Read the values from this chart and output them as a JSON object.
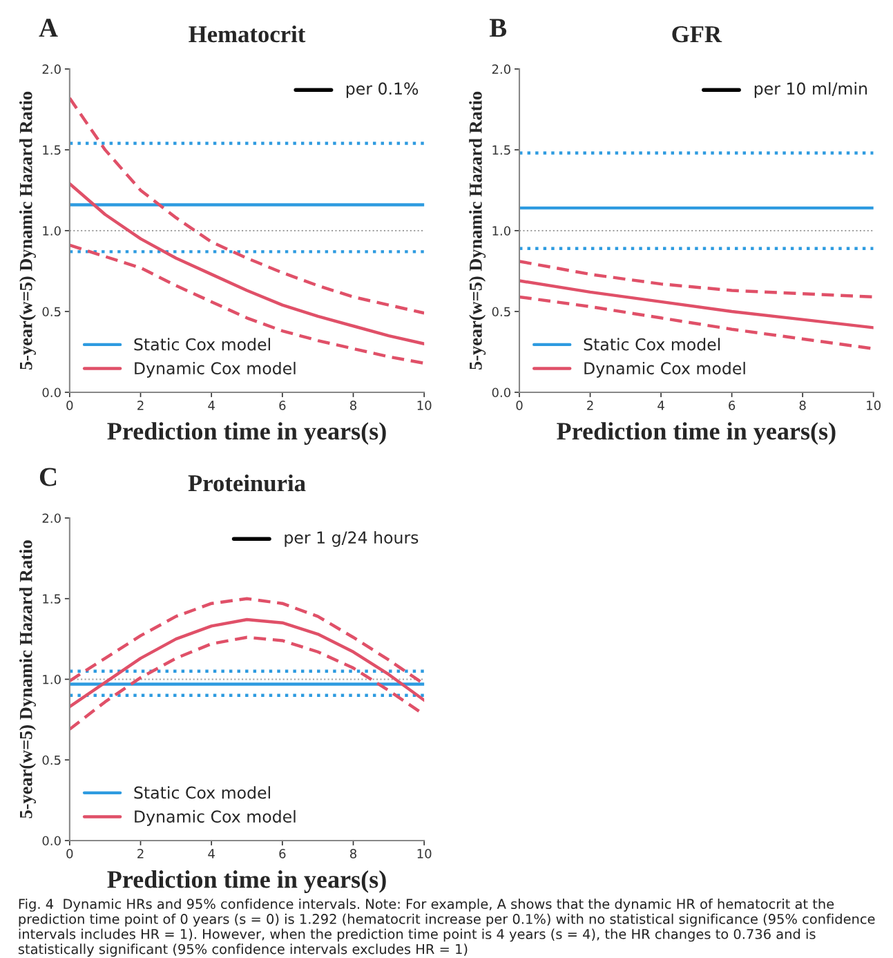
{
  "chart_data": [
    {
      "type": "line",
      "title": "Hematocrit",
      "xlabel": "Prediction time in years(s)",
      "ylabel": "5-year(w=5) Dynamic Hazard Ratio",
      "x": [
        0,
        1,
        2,
        3,
        4,
        5,
        6,
        7,
        8,
        9,
        10
      ],
      "xlim": [
        0,
        10
      ],
      "xticks": [
        0,
        2,
        4,
        6,
        8,
        10
      ],
      "ylim": [
        0,
        2
      ],
      "yticks": [
        {
          "value": 0,
          "label": "0.0"
        },
        {
          "value": 0.5,
          "label": "0.5"
        },
        {
          "value": 1,
          "label": "1.0"
        },
        {
          "value": 1.5,
          "label": "1.5"
        },
        {
          "value": 2,
          "label": "2.0"
        }
      ],
      "legend": "lower left",
      "grid": false,
      "series": [
        {
          "name": "Static Cox model",
          "color": "#2e9be0",
          "line_style": "solid",
          "values": [
            1.16,
            1.16,
            1.16,
            1.16,
            1.16,
            1.16,
            1.16,
            1.16,
            1.16,
            1.16,
            1.16
          ]
        },
        {
          "color": "#2e9be0",
          "line_style": "dotted",
          "values": [
            1.54,
            1.54,
            1.54,
            1.54,
            1.54,
            1.54,
            1.54,
            1.54,
            1.54,
            1.54,
            1.54
          ]
        },
        {
          "color": "#2e9be0",
          "line_style": "dotted",
          "values": [
            0.87,
            0.87,
            0.87,
            0.87,
            0.87,
            0.87,
            0.87,
            0.87,
            0.87,
            0.87,
            0.87
          ]
        },
        {
          "name": "Dynamic Cox model",
          "color": "#e05068",
          "line_style": "solid",
          "values": [
            1.29,
            1.1,
            0.95,
            0.83,
            0.73,
            0.63,
            0.54,
            0.47,
            0.41,
            0.35,
            0.3
          ]
        },
        {
          "color": "#e05068",
          "line_style": "dashed",
          "values": [
            1.82,
            1.5,
            1.25,
            1.08,
            0.93,
            0.83,
            0.74,
            0.66,
            0.59,
            0.54,
            0.49
          ]
        },
        {
          "color": "#e05068",
          "line_style": "dashed",
          "values": [
            0.91,
            0.84,
            0.77,
            0.66,
            0.56,
            0.46,
            0.38,
            0.32,
            0.27,
            0.22,
            0.18
          ]
        }
      ],
      "ref_lines": [
        {
          "axis": "y",
          "value": 1,
          "color": "#a0a0a0",
          "line_style": "dotted"
        }
      ],
      "annotations": [
        "A",
        "per 0.1%"
      ]
    },
    {
      "type": "line",
      "title": "GFR",
      "xlabel": "Prediction time in years(s)",
      "ylabel": "5-year(w=5) Dynamic Hazard Ratio",
      "x": [
        0,
        2,
        4,
        6,
        8,
        10
      ],
      "xlim": [
        0,
        10
      ],
      "xticks": [
        0,
        2,
        4,
        6,
        8,
        10
      ],
      "ylim": [
        0,
        2
      ],
      "yticks": [
        {
          "value": 0,
          "label": "0.0"
        },
        {
          "value": 0.5,
          "label": "0.5"
        },
        {
          "value": 1,
          "label": "1.0"
        },
        {
          "value": 1.5,
          "label": "1.5"
        },
        {
          "value": 2,
          "label": "2.0"
        }
      ],
      "legend": "lower left",
      "grid": false,
      "series": [
        {
          "name": "Static Cox model",
          "color": "#2e9be0",
          "line_style": "solid",
          "values": [
            1.14,
            1.14,
            1.14,
            1.14,
            1.14,
            1.14
          ]
        },
        {
          "color": "#2e9be0",
          "line_style": "dotted",
          "values": [
            1.48,
            1.48,
            1.48,
            1.48,
            1.48,
            1.48
          ]
        },
        {
          "color": "#2e9be0",
          "line_style": "dotted",
          "values": [
            0.89,
            0.89,
            0.89,
            0.89,
            0.89,
            0.89
          ]
        },
        {
          "name": "Dynamic Cox model",
          "color": "#e05068",
          "line_style": "solid",
          "values": [
            0.69,
            0.62,
            0.56,
            0.5,
            0.45,
            0.4
          ]
        },
        {
          "color": "#e05068",
          "line_style": "dashed",
          "values": [
            0.81,
            0.73,
            0.67,
            0.63,
            0.61,
            0.59
          ]
        },
        {
          "color": "#e05068",
          "line_style": "dashed",
          "values": [
            0.59,
            0.53,
            0.46,
            0.39,
            0.33,
            0.27
          ]
        }
      ],
      "ref_lines": [
        {
          "axis": "y",
          "value": 1,
          "color": "#a0a0a0",
          "line_style": "dotted"
        }
      ],
      "annotations": [
        "B",
        "per 10 ml/min"
      ]
    },
    {
      "type": "line",
      "title": "Proteinuria",
      "xlabel": "Prediction time in years(s)",
      "ylabel": "5-year(w=5) Dynamic Hazard Ratio",
      "x": [
        0,
        1,
        2,
        3,
        4,
        5,
        6,
        7,
        8,
        9,
        10
      ],
      "xlim": [
        0,
        10
      ],
      "xticks": [
        0,
        2,
        4,
        6,
        8,
        10
      ],
      "ylim": [
        0,
        2
      ],
      "yticks": [
        {
          "value": 0,
          "label": "0.0"
        },
        {
          "value": 0.5,
          "label": "0.5"
        },
        {
          "value": 1,
          "label": "1.0"
        },
        {
          "value": 1.5,
          "label": "1.5"
        },
        {
          "value": 2,
          "label": "2.0"
        }
      ],
      "legend": "lower left",
      "grid": false,
      "series": [
        {
          "name": "Static Cox model",
          "color": "#2e9be0",
          "line_style": "solid",
          "values": [
            0.97,
            0.97,
            0.97,
            0.97,
            0.97,
            0.97,
            0.97,
            0.97,
            0.97,
            0.97,
            0.97
          ]
        },
        {
          "color": "#2e9be0",
          "line_style": "dotted",
          "values": [
            1.05,
            1.05,
            1.05,
            1.05,
            1.05,
            1.05,
            1.05,
            1.05,
            1.05,
            1.05,
            1.05
          ]
        },
        {
          "color": "#2e9be0",
          "line_style": "dotted",
          "values": [
            0.9,
            0.9,
            0.9,
            0.9,
            0.9,
            0.9,
            0.9,
            0.9,
            0.9,
            0.9,
            0.9
          ]
        },
        {
          "name": "Dynamic Cox model",
          "color": "#e05068",
          "line_style": "solid",
          "values": [
            0.83,
            0.98,
            1.13,
            1.25,
            1.33,
            1.37,
            1.35,
            1.28,
            1.17,
            1.03,
            0.87
          ]
        },
        {
          "color": "#e05068",
          "line_style": "dashed",
          "values": [
            0.99,
            1.13,
            1.27,
            1.39,
            1.47,
            1.5,
            1.47,
            1.39,
            1.26,
            1.12,
            0.97
          ]
        },
        {
          "color": "#e05068",
          "line_style": "dashed",
          "values": [
            0.69,
            0.86,
            1.01,
            1.13,
            1.22,
            1.26,
            1.24,
            1.17,
            1.07,
            0.93,
            0.78
          ]
        }
      ],
      "ref_lines": [
        {
          "axis": "y",
          "value": 1,
          "color": "#a0a0a0",
          "line_style": "dotted"
        }
      ],
      "annotations": [
        "C",
        "per 1 g/24 hours",
        "Fig. 4  Dynamic HRs and 95% confidence intervals. Note: For example, A shows that the dynamic HR of hematocrit at the prediction time point of 0 years (s = 0) is 1.292 (hematocrit increase per 0.1%) with no statistical significance (95% confidence intervals includes HR = 1). However, when the prediction time point is 4 years (s = 4), the HR changes to 0.736 and is statistically significant (95% confidence intervals excludes HR = 1)"
      ]
    }
  ]
}
